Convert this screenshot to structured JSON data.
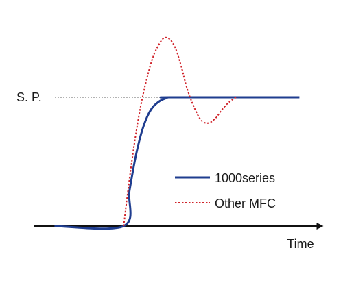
{
  "chart_data": {
    "type": "line",
    "title": "",
    "xlabel": "Time",
    "ylabel": "",
    "y_reference_label": "S. P.",
    "y_reference_value": 1.0,
    "xlim": [
      0,
      10
    ],
    "ylim": [
      0,
      1.5
    ],
    "grid": false,
    "legend_position": "right-center",
    "series": [
      {
        "name": "1000series",
        "color": "#1f3d8f",
        "style": "solid",
        "x": [
          0.7,
          3.1,
          3.3,
          3.5,
          3.7,
          3.9,
          4.1,
          4.35,
          4.6,
          4.75,
          9.2
        ],
        "y": [
          0,
          0,
          0.27,
          0.52,
          0.71,
          0.84,
          0.92,
          0.97,
          0.995,
          1.0,
          1.0
        ]
      },
      {
        "name": "Other MFC",
        "color": "#d0232a",
        "style": "dotted",
        "x": [
          3.1,
          3.3,
          3.5,
          3.7,
          3.9,
          4.1,
          4.3,
          4.5,
          4.7,
          4.9,
          5.1,
          5.3,
          5.55,
          5.8,
          6.05,
          6.3,
          6.5,
          6.75,
          7.0
        ],
        "y": [
          0,
          0.36,
          0.68,
          0.94,
          1.14,
          1.3,
          1.4,
          1.46,
          1.45,
          1.38,
          1.24,
          1.07,
          0.92,
          0.82,
          0.8,
          0.84,
          0.9,
          0.96,
          1.0
        ]
      }
    ]
  }
}
